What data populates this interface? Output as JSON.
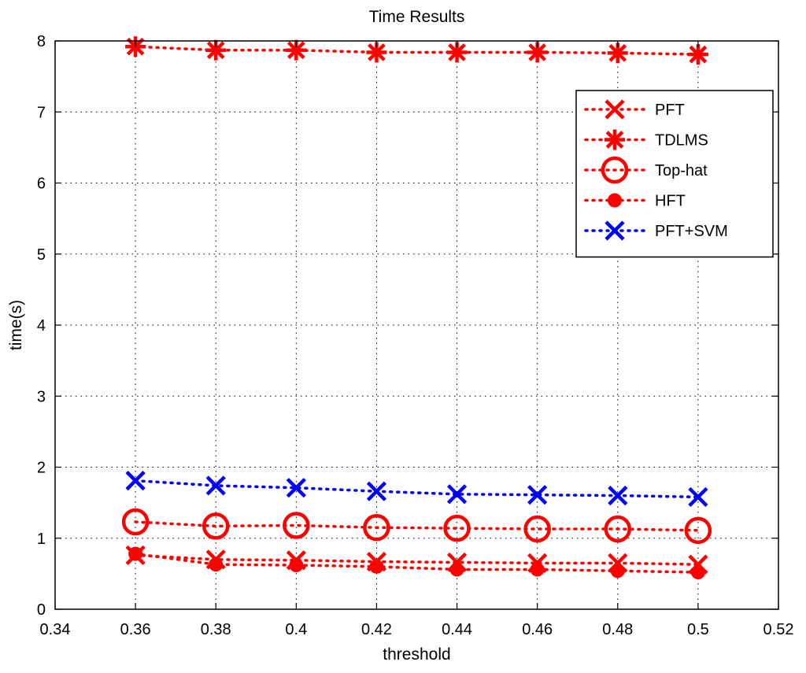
{
  "chart_data": {
    "type": "line",
    "title": "Time Results",
    "xlabel": "threshold",
    "ylabel": "time(s)",
    "xlim": [
      0.34,
      0.52
    ],
    "ylim": [
      0,
      8
    ],
    "xticks": [
      0.34,
      0.36,
      0.38,
      0.4,
      0.42,
      0.44,
      0.46,
      0.48,
      0.5,
      0.52
    ],
    "xtick_labels": [
      "0.34",
      "0.36",
      "0.38",
      "0.4",
      "0.42",
      "0.44",
      "0.46",
      "0.48",
      "0.5",
      "0.52"
    ],
    "yticks": [
      0,
      1,
      2,
      3,
      4,
      5,
      6,
      7,
      8
    ],
    "ytick_labels": [
      "0",
      "1",
      "2",
      "3",
      "4",
      "5",
      "6",
      "7",
      "8"
    ],
    "grid": true,
    "legend_position": "top-right",
    "x": [
      0.36,
      0.38,
      0.4,
      0.42,
      0.44,
      0.46,
      0.48,
      0.5
    ],
    "series": [
      {
        "name": "PFT",
        "color": "#ff0000",
        "marker": "x",
        "line_style": "dotted",
        "values": [
          0.76,
          0.7,
          0.69,
          0.67,
          0.66,
          0.65,
          0.65,
          0.63
        ]
      },
      {
        "name": "TDLMS",
        "color": "#ff0000",
        "marker": "asterisk",
        "line_style": "dotted",
        "values": [
          7.92,
          7.87,
          7.87,
          7.84,
          7.84,
          7.84,
          7.83,
          7.81
        ]
      },
      {
        "name": "Top-hat",
        "color": "#ff0000",
        "marker": "circle",
        "line_style": "dotted",
        "values": [
          1.23,
          1.17,
          1.18,
          1.15,
          1.14,
          1.13,
          1.13,
          1.11
        ]
      },
      {
        "name": "HFT",
        "color": "#ff0000",
        "marker": "dot",
        "line_style": "dotted",
        "values": [
          0.78,
          0.63,
          0.62,
          0.6,
          0.56,
          0.56,
          0.54,
          0.52
        ]
      },
      {
        "name": "PFT+SVM",
        "color": "#0000ff",
        "marker": "x",
        "line_style": "dotted",
        "values": [
          1.81,
          1.74,
          1.71,
          1.66,
          1.62,
          1.61,
          1.6,
          1.58
        ]
      }
    ]
  }
}
